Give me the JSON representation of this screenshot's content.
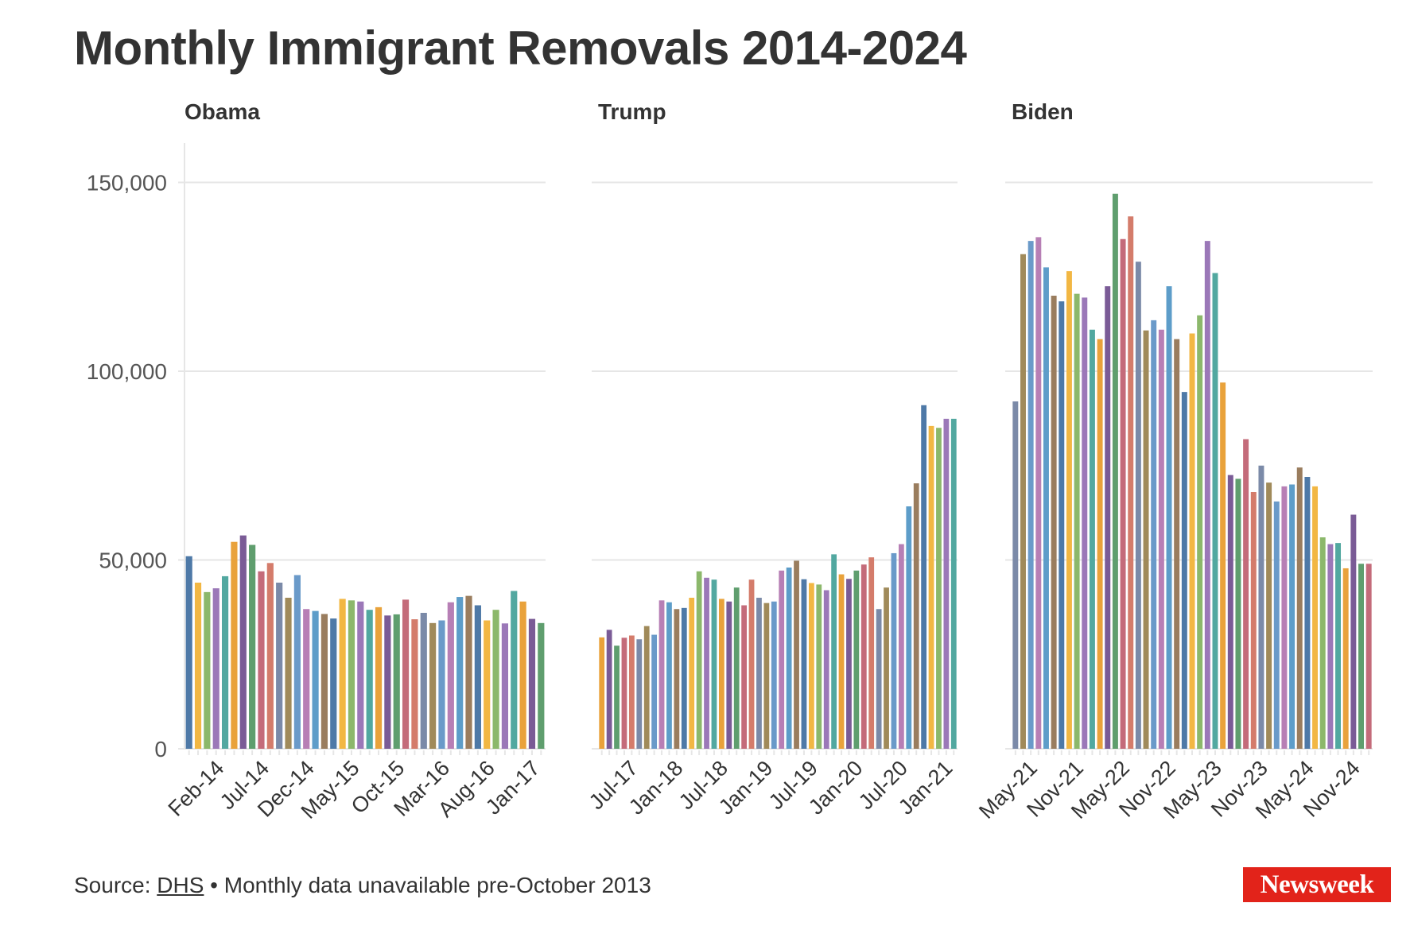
{
  "title": "Monthly Immigrant Removals 2014-2024",
  "footer": {
    "source_prefix": "Source: ",
    "source_link": "DHS",
    "note": " • Monthly data unavailable pre-October 2013"
  },
  "brand": {
    "logo_text": "Newsweek",
    "color": "#e2231a"
  },
  "colors": {
    "palette": [
      "#4e79a7",
      "#f2b743",
      "#8cb86b",
      "#9b78b8",
      "#52a8a0",
      "#e9a23b",
      "#7a5b96",
      "#5f9e6e",
      "#c46b7a",
      "#d47c6b",
      "#7b8aa8",
      "#a08a5a",
      "#6a9ac9",
      "#b77fb5",
      "#5d9dc9",
      "#9a7d5e"
    ],
    "grid": "#e6e6e6",
    "text": "#333333"
  },
  "chart_data": [
    {
      "type": "bar",
      "title": "Obama",
      "ylim": [
        0,
        160000
      ],
      "yticks": [
        0,
        50000,
        100000,
        150000
      ],
      "ytick_labels": [
        "0",
        "50,000",
        "100,000",
        "150,000"
      ],
      "xtick_labels": [
        "Feb-14",
        "Jul-14",
        "Dec-14",
        "May-15",
        "Oct-15",
        "Mar-16",
        "Aug-16",
        "Jan-17"
      ],
      "categories": [
        "Oct-13",
        "Nov-13",
        "Dec-13",
        "Jan-14",
        "Feb-14",
        "Mar-14",
        "Apr-14",
        "May-14",
        "Jun-14",
        "Jul-14",
        "Aug-14",
        "Sep-14",
        "Oct-14",
        "Nov-14",
        "Dec-14",
        "Jan-15",
        "Feb-15",
        "Mar-15",
        "Apr-15",
        "May-15",
        "Jun-15",
        "Jul-15",
        "Aug-15",
        "Sep-15",
        "Oct-15",
        "Nov-15",
        "Dec-15",
        "Jan-16",
        "Feb-16",
        "Mar-16",
        "Apr-16",
        "May-16",
        "Jun-16",
        "Jul-16",
        "Aug-16",
        "Sep-16",
        "Oct-16",
        "Nov-16",
        "Dec-16",
        "Jan-17"
      ],
      "values": [
        51000,
        44000,
        41500,
        42500,
        45700,
        54800,
        56500,
        54000,
        47000,
        49200,
        44000,
        40000,
        46000,
        37000,
        36500,
        35700,
        34500,
        39700,
        39300,
        39000,
        36800,
        37500,
        35300,
        35600,
        39500,
        34300,
        36000,
        33300,
        34000,
        38800,
        40200,
        40500,
        38000,
        34000,
        36800,
        33200,
        41800,
        39000,
        34400,
        33300
      ],
      "grid": true
    },
    {
      "type": "bar",
      "title": "Trump",
      "ylim": [
        0,
        160000
      ],
      "xtick_labels": [
        "Jul-17",
        "Jan-18",
        "Jul-18",
        "Jan-19",
        "Jul-19",
        "Jan-20",
        "Jul-20",
        "Jan-21"
      ],
      "categories": [
        "Feb-17",
        "Mar-17",
        "Apr-17",
        "May-17",
        "Jun-17",
        "Jul-17",
        "Aug-17",
        "Sep-17",
        "Oct-17",
        "Nov-17",
        "Dec-17",
        "Jan-18",
        "Feb-18",
        "Mar-18",
        "Apr-18",
        "May-18",
        "Jun-18",
        "Jul-18",
        "Aug-18",
        "Sep-18",
        "Oct-18",
        "Nov-18",
        "Dec-18",
        "Jan-19",
        "Feb-19",
        "Mar-19",
        "Apr-19",
        "May-19",
        "Jun-19",
        "Jul-19",
        "Aug-19",
        "Sep-19",
        "Oct-19",
        "Nov-19",
        "Dec-19",
        "Jan-20",
        "Feb-20",
        "Mar-20",
        "Apr-20",
        "May-20",
        "Jun-20",
        "Jul-20",
        "Aug-20",
        "Sep-20",
        "Oct-20",
        "Nov-20",
        "Dec-20",
        "Jan-21"
      ],
      "values": [
        29500,
        31500,
        27300,
        29400,
        30000,
        29000,
        32500,
        30200,
        39300,
        38800,
        37000,
        37300,
        40000,
        47000,
        45300,
        44800,
        39700,
        39000,
        42700,
        38000,
        44800,
        40000,
        38600,
        39000,
        47200,
        48000,
        49800,
        44900,
        43900,
        43500,
        42000,
        51500,
        46200,
        45000,
        47200,
        48800,
        50700,
        37000,
        42700,
        51800,
        54200,
        64200,
        70300,
        91000,
        85500,
        85000,
        87400,
        87400
      ],
      "grid": true
    },
    {
      "type": "bar",
      "title": "Biden",
      "ylim": [
        0,
        160000
      ],
      "xtick_labels": [
        "May-21",
        "Nov-21",
        "May-22",
        "Nov-22",
        "May-23",
        "Nov-23",
        "May-24",
        "Nov-24"
      ],
      "categories": [
        "Feb-21",
        "Mar-21",
        "Apr-21",
        "May-21",
        "Jun-21",
        "Jul-21",
        "Aug-21",
        "Sep-21",
        "Oct-21",
        "Nov-21",
        "Dec-21",
        "Jan-22",
        "Feb-22",
        "Mar-22",
        "Apr-22",
        "May-22",
        "Jun-22",
        "Jul-22",
        "Aug-22",
        "Sep-22",
        "Oct-22",
        "Nov-22",
        "Dec-22",
        "Jan-23",
        "Feb-23",
        "Mar-23",
        "Apr-23",
        "May-23",
        "Jun-23",
        "Jul-23",
        "Aug-23",
        "Sep-23",
        "Oct-23",
        "Nov-23",
        "Dec-23",
        "Jan-24",
        "Feb-24",
        "Mar-24",
        "Apr-24",
        "May-24",
        "Jun-24",
        "Jul-24",
        "Aug-24",
        "Sep-24",
        "Oct-24",
        "Nov-24",
        "Dec-24"
      ],
      "values": [
        92000,
        131000,
        134500,
        135500,
        127500,
        120000,
        118500,
        126500,
        120500,
        119500,
        111000,
        108500,
        122500,
        147000,
        135000,
        141000,
        129000,
        110800,
        113500,
        111000,
        122500,
        108500,
        94500,
        110000,
        114800,
        134500,
        126000,
        97000,
        72500,
        71500,
        82000,
        68000,
        75000,
        70500,
        65500,
        69500,
        70000,
        74500,
        72000,
        69500,
        56000,
        54200,
        54500,
        47800,
        62000,
        49000,
        49000
      ],
      "grid": true
    }
  ]
}
